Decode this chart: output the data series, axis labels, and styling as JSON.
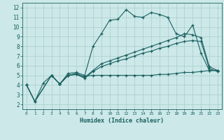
{
  "xlabel": "Humidex (Indice chaleur)",
  "xlim": [
    -0.5,
    23.5
  ],
  "ylim": [
    1.5,
    12.5
  ],
  "xticks": [
    0,
    1,
    2,
    3,
    4,
    5,
    6,
    7,
    8,
    9,
    10,
    11,
    12,
    13,
    14,
    15,
    16,
    17,
    18,
    19,
    20,
    21,
    22,
    23
  ],
  "yticks": [
    2,
    3,
    4,
    5,
    6,
    7,
    8,
    9,
    10,
    11,
    12
  ],
  "bg_color": "#cce8e8",
  "grid_color": "#aacccc",
  "line_color": "#1a6060",
  "line1_x": [
    0,
    1,
    2,
    3,
    4,
    5,
    6,
    7,
    8,
    9,
    10,
    11,
    12,
    13,
    14,
    15,
    16,
    17,
    18,
    19,
    20,
    21,
    22,
    23
  ],
  "line1_y": [
    4.0,
    2.3,
    4.2,
    5.0,
    4.1,
    5.2,
    5.3,
    5.0,
    8.0,
    9.3,
    10.7,
    10.8,
    11.8,
    11.1,
    11.0,
    11.5,
    11.3,
    11.0,
    9.3,
    9.0,
    10.2,
    7.3,
    5.5,
    5.5
  ],
  "line2_x": [
    0,
    1,
    3,
    4,
    5,
    6,
    7,
    8,
    9,
    10,
    11,
    12,
    13,
    14,
    15,
    16,
    17,
    18,
    19,
    20,
    21,
    22,
    23
  ],
  "line2_y": [
    4.0,
    2.3,
    5.0,
    4.1,
    5.0,
    5.2,
    4.8,
    5.5,
    6.2,
    6.5,
    6.8,
    7.1,
    7.4,
    7.7,
    8.0,
    8.3,
    8.6,
    8.9,
    9.3,
    9.2,
    8.9,
    5.9,
    5.5
  ],
  "line3_x": [
    0,
    1,
    3,
    4,
    5,
    6,
    7,
    8,
    9,
    10,
    11,
    12,
    13,
    14,
    15,
    16,
    17,
    18,
    19,
    20,
    21,
    22,
    23
  ],
  "line3_y": [
    4.0,
    2.3,
    5.0,
    4.1,
    5.0,
    5.1,
    4.7,
    5.4,
    5.9,
    6.2,
    6.5,
    6.7,
    7.0,
    7.3,
    7.5,
    7.8,
    8.0,
    8.3,
    8.5,
    8.6,
    8.5,
    5.7,
    5.4
  ],
  "line4_x": [
    3,
    4,
    5,
    6,
    7,
    8,
    9,
    10,
    11,
    12,
    13,
    14,
    15,
    16,
    17,
    18,
    19,
    20,
    21,
    22,
    23
  ],
  "line4_y": [
    5.0,
    4.1,
    5.0,
    5.1,
    4.9,
    5.0,
    5.0,
    5.0,
    5.0,
    5.0,
    5.0,
    5.0,
    5.0,
    5.1,
    5.1,
    5.2,
    5.3,
    5.3,
    5.4,
    5.5,
    5.5
  ]
}
